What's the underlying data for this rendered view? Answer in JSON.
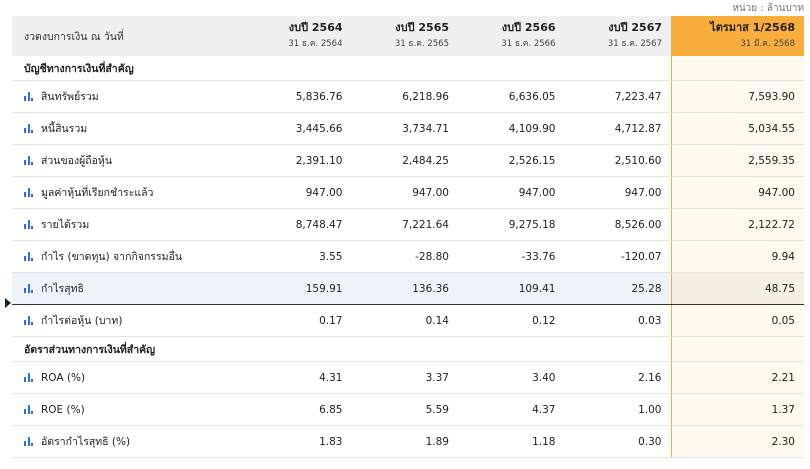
{
  "unit_note": "หน่วย : ล้านบาท",
  "header": {
    "label": "งวดงบการเงิน ณ วันที่",
    "periods": [
      {
        "title": "งบปี 2564",
        "date": "31 ธ.ค. 2564"
      },
      {
        "title": "งบปี 2565",
        "date": "31 ธ.ค. 2565"
      },
      {
        "title": "งบปี 2566",
        "date": "31 ธ.ค. 2566"
      },
      {
        "title": "งบปี 2567",
        "date": "31 ธ.ค. 2567"
      },
      {
        "title": "ไตรมาส 1/2568",
        "date": "31 มี.ค. 2568"
      }
    ]
  },
  "sections": [
    {
      "title": "บัญชีทางการเงินที่สำคัญ",
      "rows": [
        {
          "label": "สินทรัพย์รวม",
          "values": [
            "5,836.76",
            "6,218.96",
            "6,636.05",
            "7,223.47",
            "7,593.90"
          ]
        },
        {
          "label": "หนี้สินรวม",
          "values": [
            "3,445.66",
            "3,734.71",
            "4,109.90",
            "4,712.87",
            "5,034.55"
          ]
        },
        {
          "label": "ส่วนของผู้ถือหุ้น",
          "values": [
            "2,391.10",
            "2,484.25",
            "2,526.15",
            "2,510.60",
            "2,559.35"
          ]
        },
        {
          "label": "มูลค่าหุ้นที่เรียกชำระแล้ว",
          "values": [
            "947.00",
            "947.00",
            "947.00",
            "947.00",
            "947.00"
          ]
        },
        {
          "label": "รายได้รวม",
          "values": [
            "8,748.47",
            "7,221.64",
            "9,275.18",
            "8,526.00",
            "2,122.72"
          ]
        },
        {
          "label": "กำไร (ขาดทุน) จากกิจกรรมอื่น",
          "values": [
            "3.55",
            "-28.80",
            "-33.76",
            "-120.07",
            "9.94"
          ]
        },
        {
          "label": "กำไรสุทธิ",
          "values": [
            "159.91",
            "136.36",
            "109.41",
            "25.28",
            "48.75"
          ]
        },
        {
          "label": "กำไรต่อหุ้น (บาท)",
          "values": [
            "0.17",
            "0.14",
            "0.12",
            "0.03",
            "0.05"
          ]
        }
      ]
    },
    {
      "title": "อัตราส่วนทางการเงินที่สำคัญ",
      "rows": [
        {
          "label": "ROA (%)",
          "values": [
            "4.31",
            "3.37",
            "3.40",
            "2.16",
            "2.21"
          ]
        },
        {
          "label": "ROE (%)",
          "values": [
            "6.85",
            "5.59",
            "4.37",
            "1.00",
            "1.37"
          ]
        },
        {
          "label": "อัตรากำไรสุทธิ (%)",
          "values": [
            "1.83",
            "1.89",
            "1.18",
            "0.30",
            "2.30"
          ]
        }
      ]
    }
  ],
  "colors": {
    "accent": "#f8ad3c",
    "icon": "#2d6fdc",
    "selected_row": "#eef3fb"
  },
  "icons": {
    "row": "bar-chart-icon",
    "marker": "row-pointer-icon"
  }
}
